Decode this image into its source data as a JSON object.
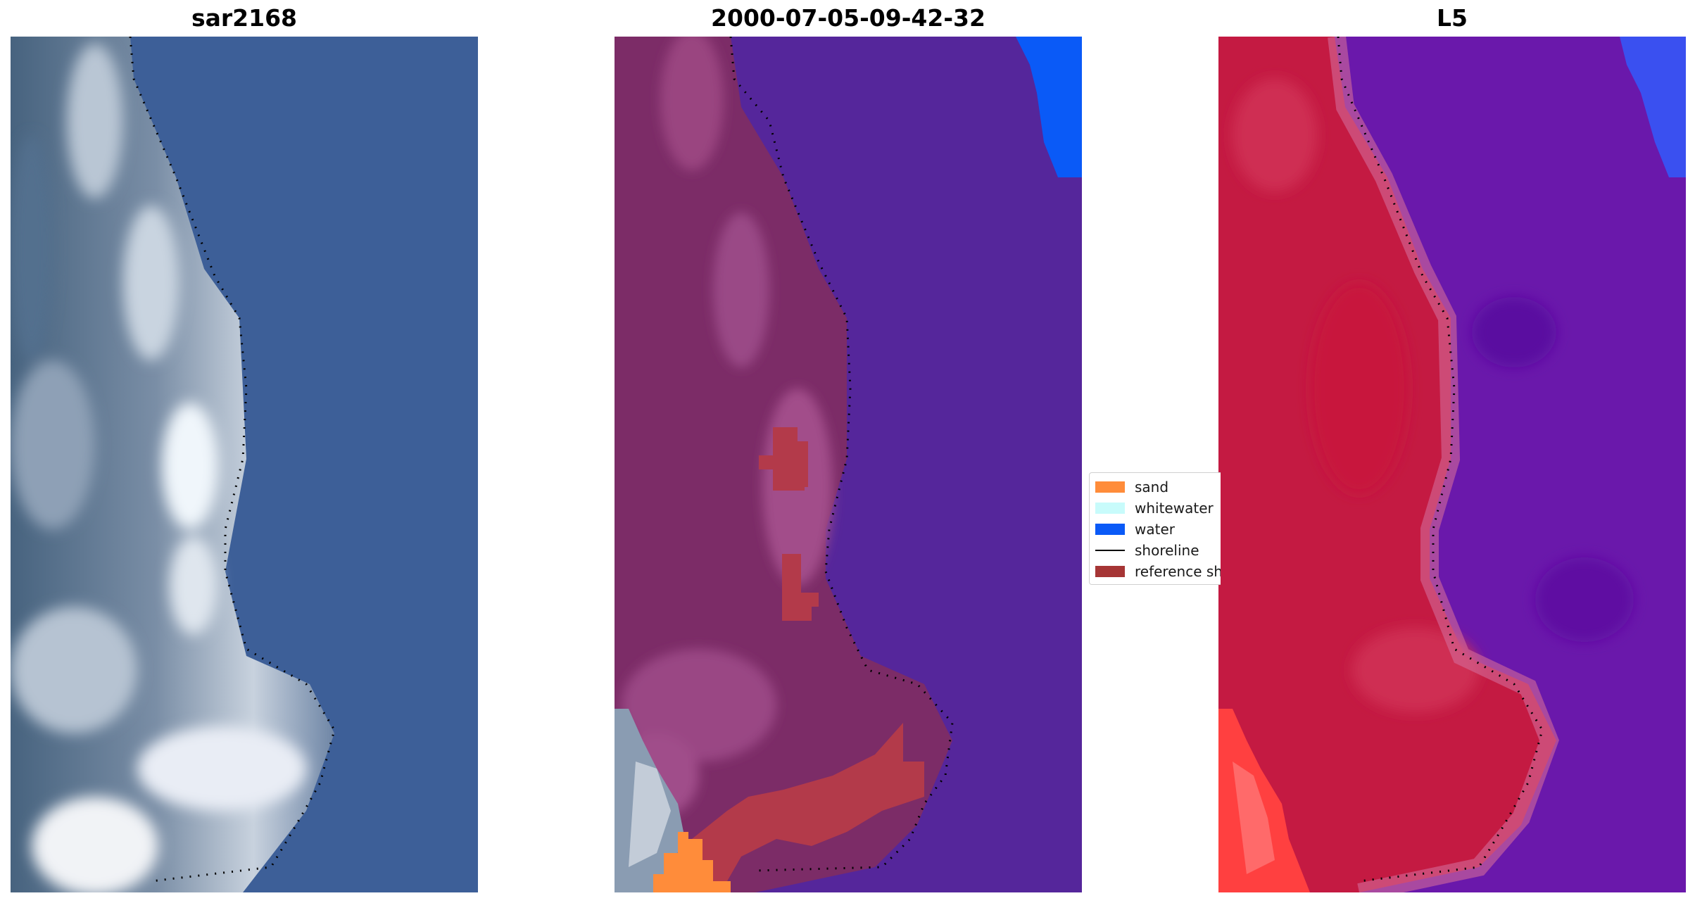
{
  "panels": [
    {
      "title": "sar2168",
      "kind": "rgb"
    },
    {
      "title": "2000-07-05-09-42-32",
      "kind": "classified"
    },
    {
      "title": "L5",
      "kind": "falsecolor"
    }
  ],
  "legend": {
    "items": [
      {
        "label": "sand",
        "type": "patch",
        "color": "#ff8c3a"
      },
      {
        "label": "whitewater",
        "type": "patch",
        "color": "#c8fbfb"
      },
      {
        "label": "water",
        "type": "patch",
        "color": "#0a5af7"
      },
      {
        "label": "shoreline",
        "type": "line",
        "color": "#000000"
      },
      {
        "label": "reference shoreline buffer",
        "type": "patch",
        "color": "#a63535"
      }
    ]
  },
  "colors": {
    "rgb_water": "#3c5f98",
    "rgb_land_dark": "#5a728c",
    "rgb_surf": "#d6dde8",
    "class_land": "#7d2c66",
    "class_water": "#54259a",
    "class_water_blue": "#0a5af7",
    "class_buffer": "#b03a48",
    "class_sand": "#ff8c3a",
    "false_land": "#c8143c",
    "false_water": "#6a16ac",
    "false_blue": "#3a50f0"
  }
}
